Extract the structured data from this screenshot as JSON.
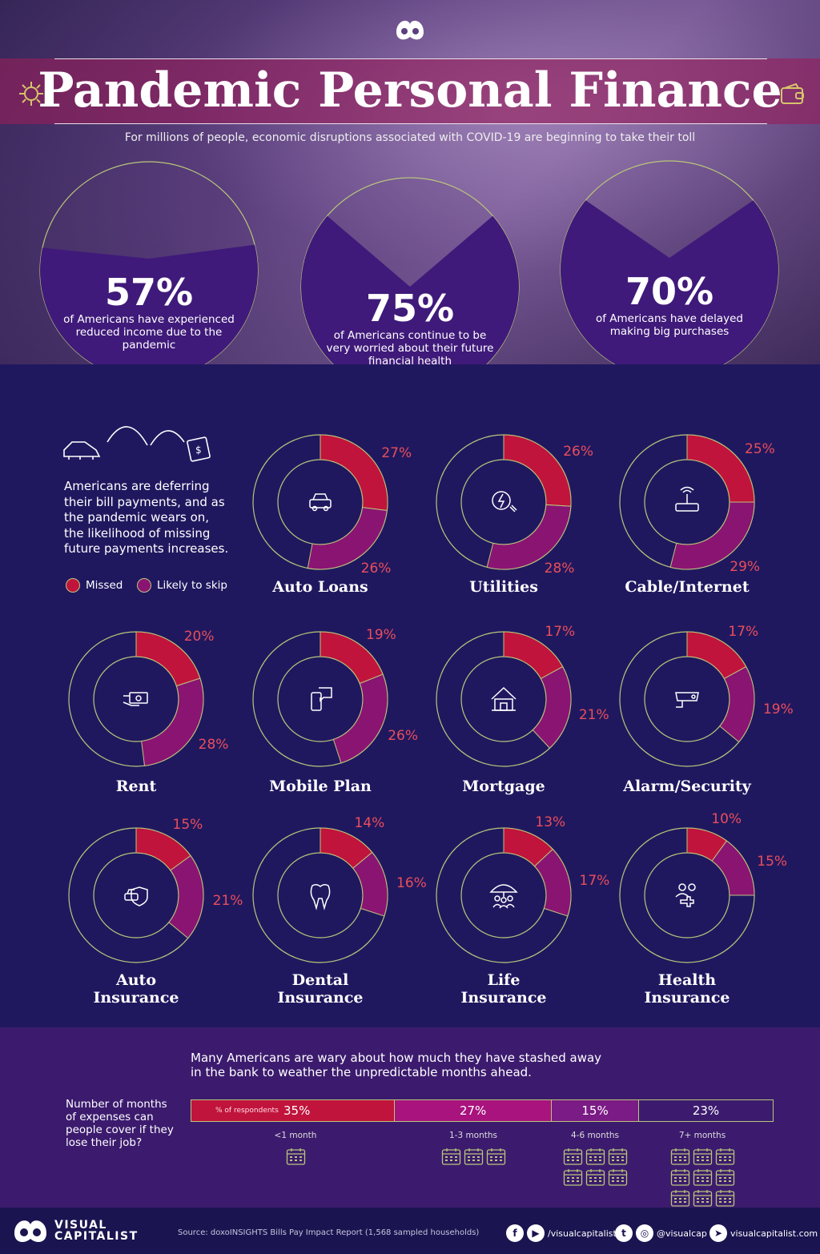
{
  "header": {
    "title": "Pandemic Personal Finance",
    "subtitle": "For millions of people, economic disruptions associated with COVID-19 are beginning to take their toll"
  },
  "stats": [
    {
      "value": "57%",
      "text": "of Americans have experienced reduced income due to the pandemic",
      "fraction": 0.57
    },
    {
      "value": "75%",
      "text": "of Americans continue to be very worried about their future financial health",
      "fraction": 0.75
    },
    {
      "value": "70%",
      "text": "of Americans have delayed making big purchases",
      "fraction": 0.7
    }
  ],
  "intro": "Americans are deferring their bill payments, and as the pandemic wears on, the likelihood of missing future payments increases.",
  "legend": {
    "missed": "Missed",
    "likely": "Likely to skip"
  },
  "colors": {
    "missed": "#c0143c",
    "likely": "#8a1472",
    "ring": "#b9c67a",
    "pct_text": "#ea4e5a"
  },
  "chart_data": [
    {
      "type": "pie",
      "series": [
        {
          "name": "Missed"
        },
        {
          "name": "Likely to skip"
        }
      ],
      "items": [
        {
          "label": "Auto Loans",
          "missed": 27,
          "likely": 26,
          "missed_label": "27%",
          "likely_label": "26%",
          "icon": "car-icon"
        },
        {
          "label": "Utilities",
          "missed": 26,
          "likely": 28,
          "missed_label": "26%",
          "likely_label": "28%",
          "icon": "utilities-icon"
        },
        {
          "label": "Cable/Internet",
          "missed": 25,
          "likely": 29,
          "missed_label": "25%",
          "likely_label": "29%",
          "icon": "router-icon"
        },
        {
          "label": "Rent",
          "missed": 20,
          "likely": 28,
          "missed_label": "20%",
          "likely_label": "28%",
          "icon": "money-hand-icon"
        },
        {
          "label": "Mobile Plan",
          "missed": 19,
          "likely": 26,
          "missed_label": "19%",
          "likely_label": "26%",
          "icon": "phone-icon"
        },
        {
          "label": "Mortgage",
          "missed": 17,
          "likely": 21,
          "missed_label": "17%",
          "likely_label": "21%",
          "icon": "house-icon"
        },
        {
          "label": "Alarm/Security",
          "missed": 17,
          "likely": 19,
          "missed_label": "17%",
          "likely_label": "19%",
          "icon": "camera-icon"
        },
        {
          "label": "Auto Insurance",
          "missed": 15,
          "likely": 21,
          "missed_label": "15%",
          "likely_label": "21%",
          "icon": "car-shield-icon"
        },
        {
          "label": "Dental Insurance",
          "missed": 14,
          "likely": 16,
          "missed_label": "14%",
          "likely_label": "16%",
          "icon": "tooth-icon"
        },
        {
          "label": "Life Insurance",
          "missed": 13,
          "likely": 17,
          "missed_label": "13%",
          "likely_label": "17%",
          "icon": "umbrella-family-icon"
        },
        {
          "label": "Health Insurance",
          "missed": 10,
          "likely": 15,
          "missed_label": "10%",
          "likely_label": "15%",
          "icon": "health-cross-icon"
        }
      ]
    },
    {
      "type": "bar",
      "orientation": "stacked-horizontal",
      "series_label": "% of respondents",
      "categories": [
        "<1 month",
        "1-3 months",
        "4-6 months",
        "7+ months"
      ],
      "values": [
        35,
        27,
        15,
        23
      ],
      "value_labels": [
        "35%",
        "27%",
        "15%",
        "23%"
      ],
      "colors": [
        "#c0143c",
        "#a8137e",
        "#7b1b85",
        "#3c1b6e"
      ],
      "calendars": [
        1,
        3,
        6,
        9
      ]
    }
  ],
  "savings": {
    "intro": "Many Americans are wary about how much they have stashed away in the bank to weather the unpredictable months ahead.",
    "question": "Number of months of expenses can people cover if they lose their job?"
  },
  "footer": {
    "brand_line1": "VISUAL",
    "brand_line2": "CAPITALIST",
    "source": "Source: doxoINSIGHTS Bills Pay Impact Report (1,568 sampled households)",
    "handle_fb_yt": "/visualcapitalist",
    "handle_tw_ig": "@visualcap",
    "website": "visualcapitalist.com"
  }
}
